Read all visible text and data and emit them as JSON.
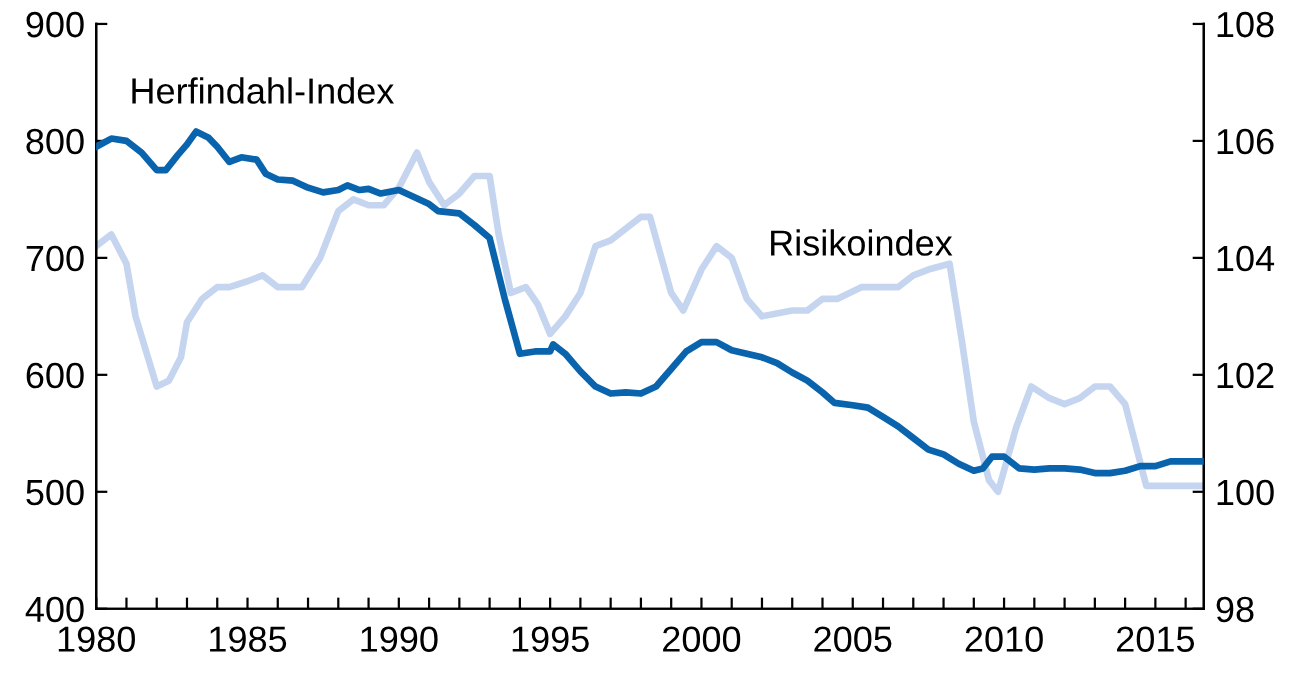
{
  "chart_data": {
    "type": "line",
    "xlim": [
      1980,
      2016.6
    ],
    "xticks": [
      1980,
      {
        "value": 1981,
        "label": null
      },
      {
        "value": 1982,
        "label": null
      },
      {
        "value": 1983,
        "label": null
      },
      {
        "value": 1984,
        "label": null
      },
      1985,
      {
        "value": 1986,
        "label": null
      },
      {
        "value": 1987,
        "label": null
      },
      {
        "value": 1988,
        "label": null
      },
      {
        "value": 1989,
        "label": null
      },
      1990,
      {
        "value": 1991,
        "label": null
      },
      {
        "value": 1992,
        "label": null
      },
      {
        "value": 1993,
        "label": null
      },
      {
        "value": 1994,
        "label": null
      },
      1995,
      {
        "value": 1996,
        "label": null
      },
      {
        "value": 1997,
        "label": null
      },
      {
        "value": 1998,
        "label": null
      },
      {
        "value": 1999,
        "label": null
      },
      2000,
      {
        "value": 2001,
        "label": null
      },
      {
        "value": 2002,
        "label": null
      },
      {
        "value": 2003,
        "label": null
      },
      {
        "value": 2004,
        "label": null
      },
      2005,
      {
        "value": 2006,
        "label": null
      },
      {
        "value": 2007,
        "label": null
      },
      {
        "value": 2008,
        "label": null
      },
      {
        "value": 2009,
        "label": null
      },
      2010,
      {
        "value": 2011,
        "label": null
      },
      {
        "value": 2012,
        "label": null
      },
      {
        "value": 2013,
        "label": null
      },
      {
        "value": 2014,
        "label": null
      },
      2015,
      {
        "value": 2016,
        "label": null
      }
    ],
    "ylim": [
      400,
      900
    ],
    "yticks": [
      400,
      500,
      600,
      700,
      800,
      900
    ],
    "y2lim": [
      98,
      108
    ],
    "y2ticks": [
      98,
      100,
      102,
      104,
      106,
      108
    ],
    "grid": false,
    "legend": false,
    "marker": "none",
    "line_style": "solid",
    "series": [
      {
        "name": "Herfindahl-Index",
        "color": "#0a64ad",
        "axis": "y",
        "x": [
          1980,
          1980.5,
          1981,
          1981.5,
          1982,
          1982.3,
          1982.7,
          1983,
          1983.3,
          1983.7,
          1984,
          1984.4,
          1984.8,
          1985.3,
          1985.6,
          1986,
          1986.5,
          1987,
          1987.5,
          1988,
          1988.3,
          1988.7,
          1989,
          1989.4,
          1990,
          1990.5,
          1991,
          1991.3,
          1992,
          1992.5,
          1993,
          1993.5,
          1994,
          1994.5,
          1995,
          1995.1,
          1995.5,
          1996,
          1996.5,
          1997,
          1997.5,
          1998,
          1998.5,
          1999,
          1999.5,
          2000,
          2000.5,
          2001,
          2001.5,
          2002,
          2002.5,
          2003,
          2003.5,
          2004,
          2004.4,
          2005,
          2005.5,
          2006,
          2006.5,
          2007,
          2007.5,
          2008,
          2008.5,
          2009,
          2009.3,
          2009.6,
          2010,
          2010.5,
          2011,
          2011.5,
          2012,
          2012.5,
          2013,
          2013.5,
          2014,
          2014.5,
          2015,
          2015.5,
          2016.6
        ],
        "values": [
          795,
          802,
          800,
          790,
          775,
          775,
          788,
          797,
          808,
          803,
          795,
          782,
          786,
          784,
          772,
          767,
          766,
          760,
          756,
          758,
          762,
          758,
          759,
          755,
          758,
          752,
          746,
          740,
          738,
          728,
          717,
          665,
          618,
          620,
          620,
          626,
          618,
          603,
          590,
          584,
          585,
          584,
          590,
          605,
          620,
          628,
          628,
          621,
          618,
          615,
          610,
          602,
          595,
          585,
          576,
          574,
          572,
          564,
          556,
          546,
          536,
          532,
          524,
          518,
          520,
          530,
          530,
          520,
          519,
          520,
          520,
          519,
          516,
          516,
          518,
          522,
          522,
          526,
          526
        ]
      },
      {
        "name": "Risikoindex",
        "color": "#c5d5ef",
        "axis": "y2",
        "x": [
          1980,
          1980.5,
          1981,
          1981.3,
          1982,
          1982.4,
          1982.8,
          1983,
          1983.5,
          1984,
          1984.4,
          1985,
          1985.5,
          1986,
          1986.8,
          1987.4,
          1988,
          1988.5,
          1989,
          1989.5,
          1990,
          1990.6,
          1991,
          1991.5,
          1992,
          1992.5,
          1993,
          1993.3,
          1993.7,
          1994.2,
          1994.6,
          1995,
          1995.5,
          1996,
          1996.5,
          1997,
          1997.5,
          1998,
          1998.3,
          1999,
          1999.4,
          2000,
          2000.5,
          2001,
          2001.5,
          2002,
          2003,
          2003.5,
          2004,
          2004.5,
          2005.3,
          2006,
          2006.5,
          2007,
          2007.5,
          2008.2,
          2008.6,
          2009,
          2009.5,
          2009.8,
          2010.4,
          2010.9,
          2011.5,
          2012,
          2012.5,
          2013,
          2013.5,
          2014,
          2014.7,
          2015,
          2015.5,
          2016.6
        ],
        "values": [
          104.2,
          104.4,
          103.9,
          103.0,
          101.8,
          101.9,
          102.3,
          102.9,
          103.3,
          103.5,
          103.5,
          103.6,
          103.7,
          103.5,
          103.5,
          104.0,
          104.8,
          105.0,
          104.9,
          104.9,
          105.2,
          105.8,
          105.3,
          104.9,
          105.1,
          105.4,
          105.4,
          104.4,
          103.4,
          103.5,
          103.2,
          102.7,
          103.0,
          103.4,
          104.2,
          104.3,
          104.5,
          104.7,
          104.7,
          103.4,
          103.1,
          103.8,
          104.2,
          104.0,
          103.3,
          103.0,
          103.1,
          103.1,
          103.3,
          103.3,
          103.5,
          103.5,
          103.5,
          103.7,
          103.8,
          103.9,
          102.6,
          101.2,
          100.2,
          100.0,
          101.1,
          101.8,
          101.6,
          101.5,
          101.6,
          101.8,
          101.8,
          101.5,
          100.1,
          100.1,
          100.1,
          100.1
        ]
      }
    ]
  }
}
